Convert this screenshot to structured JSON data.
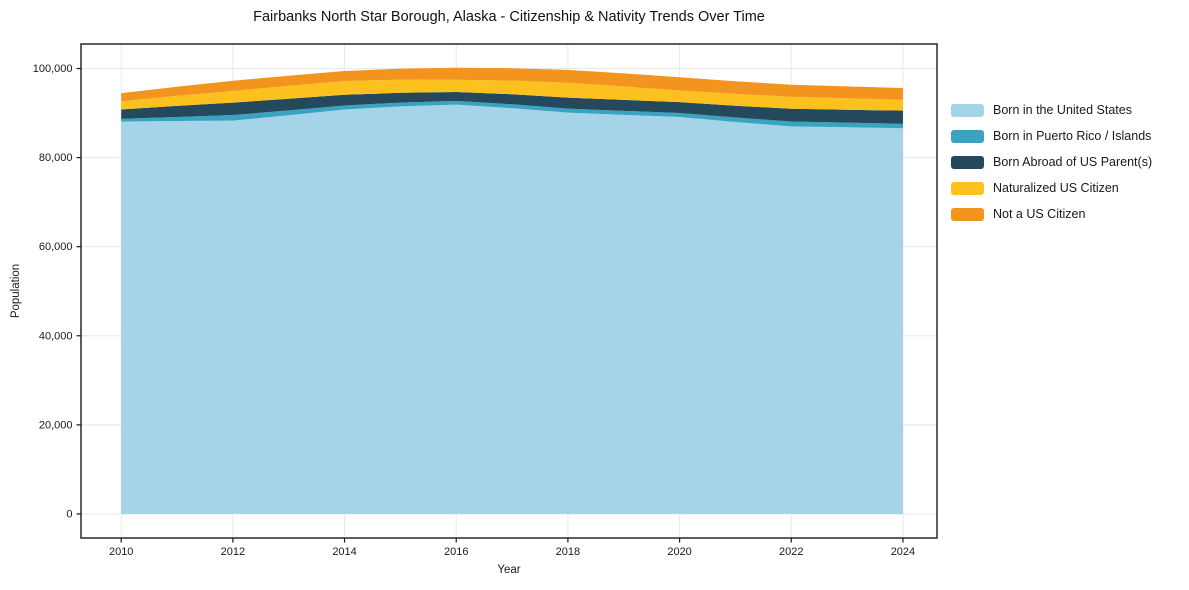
{
  "chart_data": {
    "type": "area",
    "stacked": true,
    "title": "Fairbanks North Star Borough, Alaska - Citizenship & Nativity Trends Over Time",
    "xlabel": "Year",
    "ylabel": "Population",
    "x": [
      2010,
      2011,
      2012,
      2013,
      2014,
      2015,
      2016,
      2017,
      2018,
      2019,
      2020,
      2021,
      2022,
      2023,
      2024
    ],
    "series": [
      {
        "name": "Born in the United States",
        "color": "#a5d3e8",
        "values": [
          88100,
          88200,
          88300,
          89500,
          90800,
          91500,
          91900,
          91100,
          90100,
          89600,
          89100,
          88000,
          87000,
          86800,
          86600
        ]
      },
      {
        "name": "Born in Puerto Rico / Islands",
        "color": "#3aa3c2",
        "values": [
          600,
          900,
          1250,
          1100,
          900,
          850,
          830,
          870,
          900,
          900,
          900,
          1000,
          1100,
          1050,
          980
        ]
      },
      {
        "name": "Born Abroad of US Parent(s)",
        "color": "#24495c",
        "values": [
          2100,
          2500,
          2800,
          2600,
          2400,
          2200,
          2000,
          2250,
          2450,
          2450,
          2450,
          2650,
          2850,
          2900,
          2950
        ]
      },
      {
        "name": "Naturalized US Citizen",
        "color": "#fcc11f",
        "values": [
          1850,
          2250,
          2600,
          2900,
          3100,
          2950,
          2750,
          3050,
          3350,
          3000,
          2600,
          2650,
          2700,
          2580,
          2460
        ]
      },
      {
        "name": "Not a US Citizen",
        "color": "#f3941f",
        "values": [
          1800,
          2050,
          2300,
          2270,
          2240,
          2470,
          2700,
          2800,
          2900,
          2950,
          3000,
          2850,
          2700,
          2660,
          2620
        ]
      }
    ],
    "xlim": [
      2009.28,
      2024.61
    ],
    "ylim": [
      -5400,
      105500
    ],
    "xticks": [
      2010,
      2012,
      2014,
      2016,
      2018,
      2020,
      2022,
      2024
    ],
    "yticks": [
      0,
      20000,
      40000,
      60000,
      80000,
      100000
    ],
    "grid": true,
    "grid_color": "#e8e8e8",
    "frame_color": "#1a1a1a",
    "legend_position": "right"
  }
}
